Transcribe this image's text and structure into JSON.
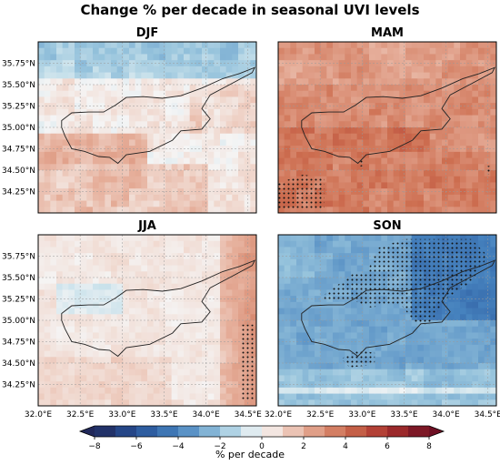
{
  "figure_title": "Change % per decade in seasonal UVI levels",
  "colorbar": {
    "label": "% per decade",
    "ticks": [
      "−8",
      "−6",
      "−4",
      "−2",
      "0",
      "2",
      "4",
      "6",
      "8"
    ],
    "min": -8,
    "max": 8,
    "extend": "both",
    "colormap": "diverging blue-white-red"
  },
  "chart_data": [
    {
      "type": "heatmap",
      "title": "DJF",
      "ylabels": [
        "35.75°N",
        "35.50°N",
        "35.25°N",
        "35.00°N",
        "34.75°N",
        "34.50°N",
        "34.25°N"
      ],
      "xlabels": [],
      "ylim": [
        34.0,
        36.0
      ],
      "xlim": [
        32.0,
        34.6
      ],
      "typical_value_range": [
        -2,
        2
      ],
      "stippled_regions": false
    },
    {
      "type": "heatmap",
      "title": "MAM",
      "ylabels": [],
      "xlabels": [],
      "ylim": [
        34.0,
        36.0
      ],
      "xlim": [
        32.0,
        34.6
      ],
      "typical_value_range": [
        2,
        5
      ],
      "stippled_regions": true
    },
    {
      "type": "heatmap",
      "title": "JJA",
      "ylabels": [
        "35.75°N",
        "35.50°N",
        "35.25°N",
        "35.00°N",
        "34.75°N",
        "34.50°N",
        "34.25°N"
      ],
      "xlabels": [
        "32.0°E",
        "32.5°E",
        "33.0°E",
        "33.5°E",
        "34.0°E",
        "34.5°E"
      ],
      "ylim": [
        34.0,
        36.0
      ],
      "xlim": [
        32.0,
        34.6
      ],
      "typical_value_range": [
        -1,
        2
      ],
      "stippled_regions": true
    },
    {
      "type": "heatmap",
      "title": "SON",
      "ylabels": [],
      "xlabels": [
        "32.0°E",
        "32.5°E",
        "33.0°E",
        "33.5°E",
        "34.0°E",
        "34.5°E"
      ],
      "ylim": [
        34.0,
        36.0
      ],
      "xlim": [
        32.0,
        34.6
      ],
      "typical_value_range": [
        -4,
        -2
      ],
      "stippled_regions": true
    }
  ]
}
